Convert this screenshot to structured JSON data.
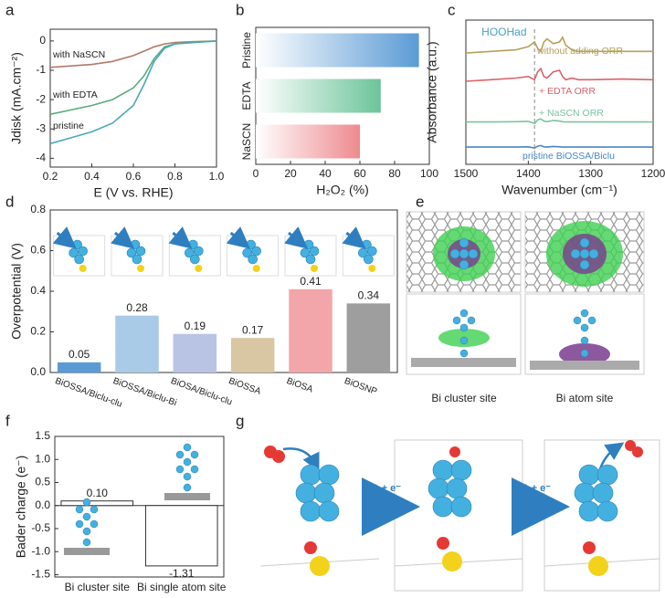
{
  "panel_labels": [
    "a",
    "b",
    "c",
    "d",
    "e",
    "f",
    "g"
  ],
  "chart_data": [
    {
      "type": "line",
      "xlabel": "E (V vs. RHE)",
      "ylabel": "Jdisk (mA.cm⁻²)",
      "x": [
        0.2,
        0.3,
        0.4,
        0.5,
        0.6,
        0.65,
        0.7,
        0.75,
        0.8,
        0.9,
        1.0
      ],
      "series": [
        {
          "name": "with NaSCN",
          "color": "#b07a6a",
          "values": [
            -0.9,
            -0.85,
            -0.8,
            -0.7,
            -0.5,
            -0.35,
            -0.2,
            -0.1,
            -0.05,
            -0.02,
            0
          ]
        },
        {
          "name": "with EDTA",
          "color": "#5aab7a",
          "values": [
            -2.5,
            -2.35,
            -2.2,
            -2.0,
            -1.6,
            -1.2,
            -0.6,
            -0.2,
            -0.1,
            -0.04,
            0
          ]
        },
        {
          "name": "pristine",
          "color": "#4aa8b8",
          "values": [
            -3.5,
            -3.3,
            -3.1,
            -2.8,
            -2.2,
            -1.5,
            -0.7,
            -0.25,
            -0.1,
            -0.05,
            0
          ]
        }
      ],
      "xlim": [
        0.2,
        1.0
      ],
      "xticks": [
        0.2,
        0.4,
        0.6,
        0.8,
        {
          "value": 1.0,
          "label": "1.0"
        }
      ],
      "ylim": [
        -4.3,
        0.4
      ],
      "yticks": [
        -4,
        -3,
        -2,
        -1,
        0
      ]
    },
    {
      "type": "hbar",
      "xlabel": "H₂O₂ (%)",
      "categories": [
        "Pristine",
        "EDTA",
        "NaSCN"
      ],
      "values": [
        94,
        72,
        60
      ],
      "colors": [
        "#5b9bd5",
        "#6cc49a",
        "#ee8a8f"
      ],
      "xlim": [
        0,
        100
      ],
      "xticks": [
        0,
        20,
        40,
        60,
        80,
        100
      ]
    },
    {
      "type": "line",
      "xlabel": "Wavenumber (cm⁻¹)",
      "ylabel": "Absorbance (a.u.)",
      "x": [
        1500,
        1460,
        1420,
        1400,
        1390,
        1385,
        1380,
        1375,
        1370,
        1360,
        1350,
        1345,
        1340,
        1330,
        1320,
        1300,
        1250,
        1200
      ],
      "series": [
        {
          "name": "without adding ORR",
          "color": "#b5a05a",
          "values": [
            3.55,
            3.6,
            3.65,
            3.75,
            3.9,
            3.7,
            3.6,
            3.9,
            4.0,
            3.85,
            3.9,
            4.05,
            3.8,
            3.65,
            3.6,
            3.6,
            3.6,
            3.6
          ]
        },
        {
          "name": "+ EDTA ORR",
          "color": "#d9626b",
          "values": [
            2.65,
            2.7,
            2.75,
            2.8,
            2.7,
            2.95,
            3.05,
            2.8,
            2.75,
            2.95,
            3.0,
            2.8,
            2.7,
            2.75,
            2.7,
            2.7,
            2.72,
            2.7
          ]
        },
        {
          "name": "+ NaSCN ORR",
          "color": "#7cc3a0",
          "values": [
            1.35,
            1.35,
            1.36,
            1.37,
            1.3,
            1.42,
            1.45,
            1.38,
            1.36,
            1.4,
            1.38,
            1.36,
            1.35,
            1.35,
            1.35,
            1.35,
            1.35,
            1.35
          ]
        },
        {
          "name": "pristine BiOSSA/Biclu",
          "color": "#4a86c5",
          "values": [
            0.55,
            0.55,
            0.55,
            0.56,
            0.52,
            0.58,
            0.6,
            0.56,
            0.55,
            0.57,
            0.56,
            0.55,
            0.55,
            0.55,
            0.55,
            0.55,
            0.55,
            0.55
          ]
        }
      ],
      "annotation": {
        "text": "HOOHad",
        "x": 1390
      },
      "xlim": [
        1500,
        1200
      ],
      "xticks": [
        1500,
        1400,
        1300,
        1200
      ],
      "ylim": [
        0,
        4.6
      ]
    },
    {
      "type": "bar",
      "ylabel": "Overpotential (V)",
      "categories": [
        "BiOSSA/Biclu-clu",
        "BiOSSA/Biclu-Bi",
        "BiOSA/Biclu-clu",
        "BiOSSA",
        "BiOSA",
        "BiOSNP"
      ],
      "values": [
        0.05,
        0.28,
        0.19,
        0.17,
        0.41,
        0.34
      ],
      "colors": [
        "#5b9bd5",
        "#a9cbe8",
        "#b9c4e4",
        "#d9c7a4",
        "#f2a6aa",
        "#9e9e9e"
      ],
      "ylim": [
        0,
        0.8
      ],
      "yticks": [
        {
          "value": 0,
          "label": "0.0"
        },
        0.2,
        0.4,
        0.6,
        0.8
      ]
    },
    {
      "type": "bar",
      "ylabel": "Bader charge (e⁻)",
      "categories": [
        "Bi cluster site",
        "Bi single atom site"
      ],
      "values": [
        0.1,
        -1.31
      ],
      "value_labels": [
        "0.10",
        "-1.31"
      ],
      "colors": [
        "#ffffff",
        "#ffffff"
      ],
      "ylim": [
        -1.55,
        1.5
      ],
      "yticks": [
        -1.5,
        {
          "value": -1,
          "label": "-1.0"
        },
        -0.5,
        {
          "value": 0,
          "label": "0.0"
        },
        0.5,
        {
          "value": 1,
          "label": "1.0"
        },
        1.5
      ]
    }
  ],
  "panel_e": {
    "sites": [
      "Bi cluster site",
      "Bi atom site"
    ]
  },
  "panel_g": {
    "steps": [
      "H⁺ + e⁻",
      "H⁺ + e⁻"
    ]
  }
}
